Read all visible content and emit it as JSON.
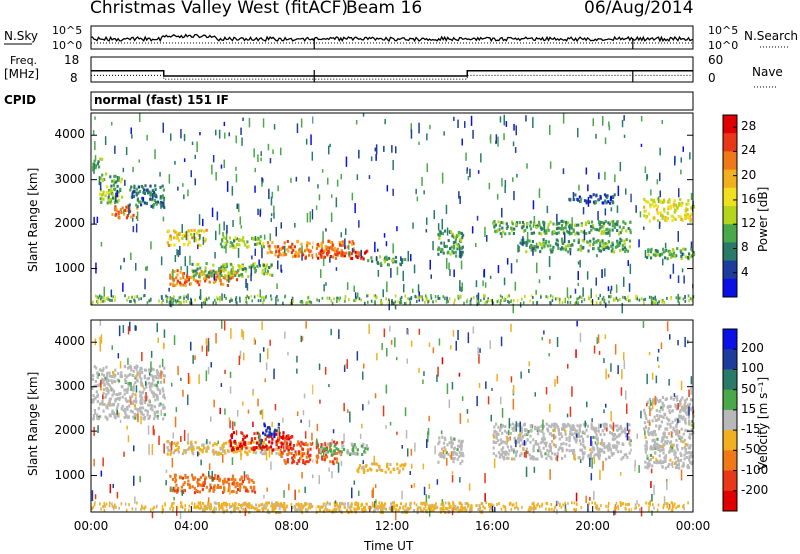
{
  "header": {
    "radar": "Christmas Valley West (fitACF)",
    "beam": "Beam 16",
    "date": "06/Aug/2014"
  },
  "top_panels": {
    "nsky_label": "N.Sky",
    "nsky_ticks": [
      "10^5",
      "10^0"
    ],
    "nsearch_label": "N.Search",
    "nsearch_ticks": [
      "10^5",
      "10^0"
    ],
    "freq_label": "Freq.",
    "freq_unit": "[MHz]",
    "freq_ticks": [
      "18",
      "8"
    ],
    "nave_label": "Nave",
    "nave_ticks": [
      "60",
      "0"
    ],
    "cpid_label": "CPID",
    "cpid_value": "normal (fast) 151 IF"
  },
  "colors": {
    "power_scale": [
      "#0a10e6",
      "#1e3c9e",
      "#2a7a6a",
      "#4aa84a",
      "#b4d41e",
      "#f0e020",
      "#f0b020",
      "#f07818",
      "#e83818",
      "#e00000"
    ],
    "velocity_scale": [
      "#0a10e6",
      "#1e3c9e",
      "#2a7a6a",
      "#4aa84a",
      "#b8b8b8",
      "#f0b020",
      "#f07818",
      "#e83818",
      "#e00000"
    ]
  },
  "chart_data": [
    {
      "type": "line",
      "name": "summary",
      "xlabel": "Time UT",
      "xlim": [
        0,
        24
      ],
      "xticks": [
        "00:00",
        "04:00",
        "08:00",
        "12:00",
        "16:00",
        "20:00",
        "00:00"
      ],
      "freq_mhz": {
        "x": [
          0,
          2.9,
          2.9,
          15.0,
          15.0,
          21.7,
          21.7,
          24
        ],
        "y": [
          12.5,
          12.5,
          10.4,
          10.4,
          12.5,
          12.5,
          12.5,
          12.5
        ]
      },
      "nave": {
        "x": [
          0,
          2.9,
          2.9,
          15.0,
          15.0,
          24
        ],
        "y": [
          16,
          16,
          7,
          7,
          16,
          16
        ]
      }
    },
    {
      "type": "heatmap",
      "name": "power",
      "ylabel": "Slant Range [km]",
      "yticks": [
        "1000",
        "2000",
        "3000",
        "4000"
      ],
      "ylim": [
        180,
        4500
      ],
      "colorbar_label": "Power [dB]",
      "colorbar_ticks": [
        "4",
        "8",
        "12",
        "16",
        "20",
        "24",
        "28"
      ],
      "colorbar_range": [
        0,
        30
      ],
      "regions": [
        {
          "t0": 0.0,
          "t1": 0.5,
          "r0": 3300,
          "r1": 3500,
          "v": 10
        },
        {
          "t0": 0.3,
          "t1": 1.2,
          "r0": 2500,
          "r1": 3200,
          "v": 12
        },
        {
          "t0": 0.8,
          "t1": 1.8,
          "r0": 2150,
          "r1": 2450,
          "v": 22
        },
        {
          "t0": 1.5,
          "t1": 2.9,
          "r0": 2400,
          "r1": 2900,
          "v": 8
        },
        {
          "t0": 3.0,
          "t1": 4.6,
          "r0": 1550,
          "r1": 1900,
          "v": 18
        },
        {
          "t0": 3.1,
          "t1": 5.8,
          "r0": 650,
          "r1": 1000,
          "v": 22
        },
        {
          "t0": 4.0,
          "t1": 7.2,
          "r0": 850,
          "r1": 1150,
          "v": 12
        },
        {
          "t0": 5.0,
          "t1": 7.0,
          "r0": 1500,
          "r1": 1750,
          "v": 12
        },
        {
          "t0": 7.0,
          "t1": 10.5,
          "r0": 1300,
          "r1": 1650,
          "v": 22
        },
        {
          "t0": 8.5,
          "t1": 11.0,
          "r0": 1250,
          "r1": 1450,
          "v": 26
        },
        {
          "t0": 11.0,
          "t1": 12.5,
          "r0": 1100,
          "r1": 1300,
          "v": 10
        },
        {
          "t0": 13.8,
          "t1": 14.8,
          "r0": 1300,
          "r1": 1900,
          "v": 10
        },
        {
          "t0": 16.0,
          "t1": 21.5,
          "r0": 1800,
          "r1": 2100,
          "v": 10
        },
        {
          "t0": 17.0,
          "t1": 21.5,
          "r0": 1400,
          "r1": 1700,
          "v": 10
        },
        {
          "t0": 19.0,
          "t1": 21.0,
          "r0": 2500,
          "r1": 2700,
          "v": 6
        },
        {
          "t0": 22.0,
          "t1": 24.0,
          "r0": 2100,
          "r1": 2600,
          "v": 16
        },
        {
          "t0": 22.0,
          "t1": 24.0,
          "r0": 1250,
          "r1": 1500,
          "v": 10
        }
      ]
    },
    {
      "type": "heatmap",
      "name": "velocity",
      "ylabel": "Slant Range [km]",
      "yticks": [
        "1000",
        "2000",
        "3000",
        "4000"
      ],
      "ylim": [
        180,
        4500
      ],
      "colorbar_label": "Velocity [m s⁻¹]",
      "colorbar_ticks": [
        "200",
        "100",
        "50",
        "15",
        "-15",
        "-50",
        "-100",
        "-200"
      ],
      "colorbar_range": [
        -250,
        250
      ],
      "regions": [
        {
          "t0": 0.0,
          "t1": 2.9,
          "r0": 2300,
          "r1": 3500,
          "v": 0
        },
        {
          "t0": 3.0,
          "t1": 7.5,
          "r0": 1500,
          "r1": 1800,
          "v": -40
        },
        {
          "t0": 3.1,
          "t1": 6.5,
          "r0": 650,
          "r1": 1050,
          "v": -120
        },
        {
          "t0": 5.5,
          "t1": 8.0,
          "r0": 1600,
          "r1": 2000,
          "v": -200
        },
        {
          "t0": 6.8,
          "t1": 7.5,
          "r0": 1900,
          "r1": 2200,
          "v": 180
        },
        {
          "t0": 7.5,
          "t1": 10.0,
          "r0": 1300,
          "r1": 1800,
          "v": -150
        },
        {
          "t0": 9.0,
          "t1": 11.0,
          "r0": 1500,
          "r1": 1750,
          "v": 40
        },
        {
          "t0": 10.5,
          "t1": 12.5,
          "r0": 1100,
          "r1": 1300,
          "v": -40
        },
        {
          "t0": 4.0,
          "t1": 16.0,
          "r0": 200,
          "r1": 420,
          "v": -40
        },
        {
          "t0": 13.8,
          "t1": 14.8,
          "r0": 1300,
          "r1": 1900,
          "v": 0
        },
        {
          "t0": 16.0,
          "t1": 21.5,
          "r0": 1400,
          "r1": 2200,
          "v": 0
        },
        {
          "t0": 22.0,
          "t1": 24.0,
          "r0": 1200,
          "r1": 2800,
          "v": 0
        }
      ]
    }
  ]
}
